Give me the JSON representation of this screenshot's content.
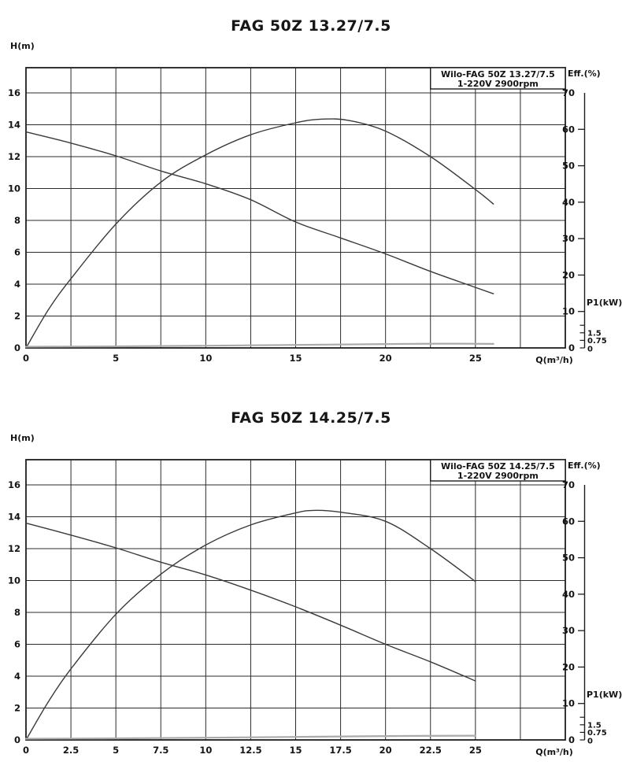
{
  "colors": {
    "background": "#ffffff",
    "grid": "#2b2b2b",
    "border": "#1d1d1d",
    "curve": "#3a3a3a",
    "power_curve": "#ababab",
    "text": "#141414"
  },
  "charts_titles": {
    "chart1": "FAG 50Z 13.27/7.5",
    "chart2": "FAG 50Z 14.25/7.5"
  },
  "chart_data": [
    {
      "type": "line",
      "title": "FAG 50Z 13.27/7.5",
      "legend": {
        "lines": [
          "Wilo-FAG 50Z 13.27/7.5",
          "1-220V 2900rpm"
        ],
        "position": "top-right"
      },
      "grid": "on",
      "axes": {
        "x": {
          "label": "Q(m³/h)",
          "min": 0,
          "max": 30,
          "grid_step": 2.5,
          "ticks": [
            "0",
            "5",
            "10",
            "15",
            "20",
            "25"
          ]
        },
        "y_left": {
          "label": "H(m)",
          "min": 0,
          "max": 16,
          "grid_step": 2,
          "ticks": [
            "0",
            "2",
            "4",
            "6",
            "8",
            "10",
            "12",
            "14",
            "16"
          ]
        },
        "y_right_eff": {
          "label": "Eff.(%)",
          "min": 0,
          "max": 70,
          "ticks": [
            "0",
            "10",
            "20",
            "30",
            "40",
            "50",
            "60",
            "70"
          ]
        },
        "y_right_p1": {
          "label": "P1(kW)",
          "ticks": [
            "0",
            "0.75",
            "1.5"
          ],
          "extra_tick_values": [
            2.25
          ]
        }
      },
      "series": [
        {
          "name": "head",
          "y_axis": "H",
          "unit": "m",
          "points": [
            [
              0,
              13.55
            ],
            [
              2.5,
              12.85
            ],
            [
              5,
              12.05
            ],
            [
              7.5,
              11.1
            ],
            [
              10,
              10.3
            ],
            [
              12.5,
              9.3
            ],
            [
              15,
              7.9
            ],
            [
              17.5,
              6.9
            ],
            [
              20,
              5.9
            ],
            [
              22.5,
              4.8
            ],
            [
              25,
              3.8
            ],
            [
              26,
              3.4
            ]
          ]
        },
        {
          "name": "efficiency",
          "y_axis": "Eff",
          "unit": "%",
          "points": [
            [
              0,
              0
            ],
            [
              1.25,
              10.5
            ],
            [
              2.5,
              19
            ],
            [
              5,
              34
            ],
            [
              7.5,
              45.5
            ],
            [
              10,
              53
            ],
            [
              12.5,
              58.5
            ],
            [
              15,
              61.8
            ],
            [
              16.5,
              62.8
            ],
            [
              18,
              62.4
            ],
            [
              20,
              59.5
            ],
            [
              22.5,
              52.5
            ],
            [
              25,
              43.5
            ],
            [
              26,
              39.5
            ]
          ]
        },
        {
          "name": "power",
          "y_axis": "P1",
          "unit": "kW",
          "points": [
            [
              0,
              0.12
            ],
            [
              5,
              0.16
            ],
            [
              10,
              0.22
            ],
            [
              15,
              0.3
            ],
            [
              20,
              0.38
            ],
            [
              23,
              0.42
            ],
            [
              26,
              0.4
            ]
          ]
        }
      ]
    },
    {
      "type": "line",
      "title": "FAG 50Z 14.25/7.5",
      "legend": {
        "lines": [
          "Wilo-FAG 50Z 14.25/7.5",
          "1-220V 2900rpm"
        ],
        "position": "top-right"
      },
      "grid": "on",
      "axes": {
        "x": {
          "label": "Q(m³/h)",
          "min": 0,
          "max": 30,
          "grid_step": 2.5,
          "ticks": [
            "0",
            "2.5",
            "5",
            "7.5",
            "10",
            "12.5",
            "15",
            "17.5",
            "20",
            "22.5",
            "25"
          ]
        },
        "y_left": {
          "label": "H(m)",
          "min": 0,
          "max": 16,
          "grid_step": 2,
          "ticks": [
            "0",
            "2",
            "4",
            "6",
            "8",
            "10",
            "12",
            "14",
            "16"
          ]
        },
        "y_right_eff": {
          "label": "Eff.(%)",
          "min": 0,
          "max": 70,
          "ticks": [
            "0",
            "10",
            "20",
            "30",
            "40",
            "50",
            "60",
            "70"
          ]
        },
        "y_right_p1": {
          "label": "P1(kW)",
          "ticks": [
            "0",
            "0.75",
            "1.5"
          ],
          "extra_tick_values": [
            2.25
          ]
        }
      },
      "series": [
        {
          "name": "head",
          "y_axis": "H",
          "unit": "m",
          "points": [
            [
              0,
              13.6
            ],
            [
              2.5,
              12.85
            ],
            [
              5,
              12.05
            ],
            [
              7.5,
              11.15
            ],
            [
              10,
              10.35
            ],
            [
              12.5,
              9.4
            ],
            [
              15,
              8.35
            ],
            [
              17.5,
              7.2
            ],
            [
              20,
              6.0
            ],
            [
              22.5,
              4.9
            ],
            [
              25,
              3.7
            ]
          ]
        },
        {
          "name": "efficiency",
          "y_axis": "Eff",
          "unit": "%",
          "points": [
            [
              0,
              0
            ],
            [
              1.25,
              10.5
            ],
            [
              2.5,
              19.5
            ],
            [
              5,
              34.5
            ],
            [
              7.5,
              45.5
            ],
            [
              10,
              53.5
            ],
            [
              12.5,
              59
            ],
            [
              15,
              62.3
            ],
            [
              16,
              63
            ],
            [
              17.5,
              62.5
            ],
            [
              20,
              60
            ],
            [
              22.5,
              52.5
            ],
            [
              25,
              43.5
            ]
          ]
        },
        {
          "name": "power",
          "y_axis": "P1",
          "unit": "kW",
          "points": [
            [
              0,
              0.12
            ],
            [
              5,
              0.16
            ],
            [
              10,
              0.22
            ],
            [
              15,
              0.3
            ],
            [
              20,
              0.38
            ],
            [
              25,
              0.42
            ]
          ]
        }
      ]
    }
  ]
}
